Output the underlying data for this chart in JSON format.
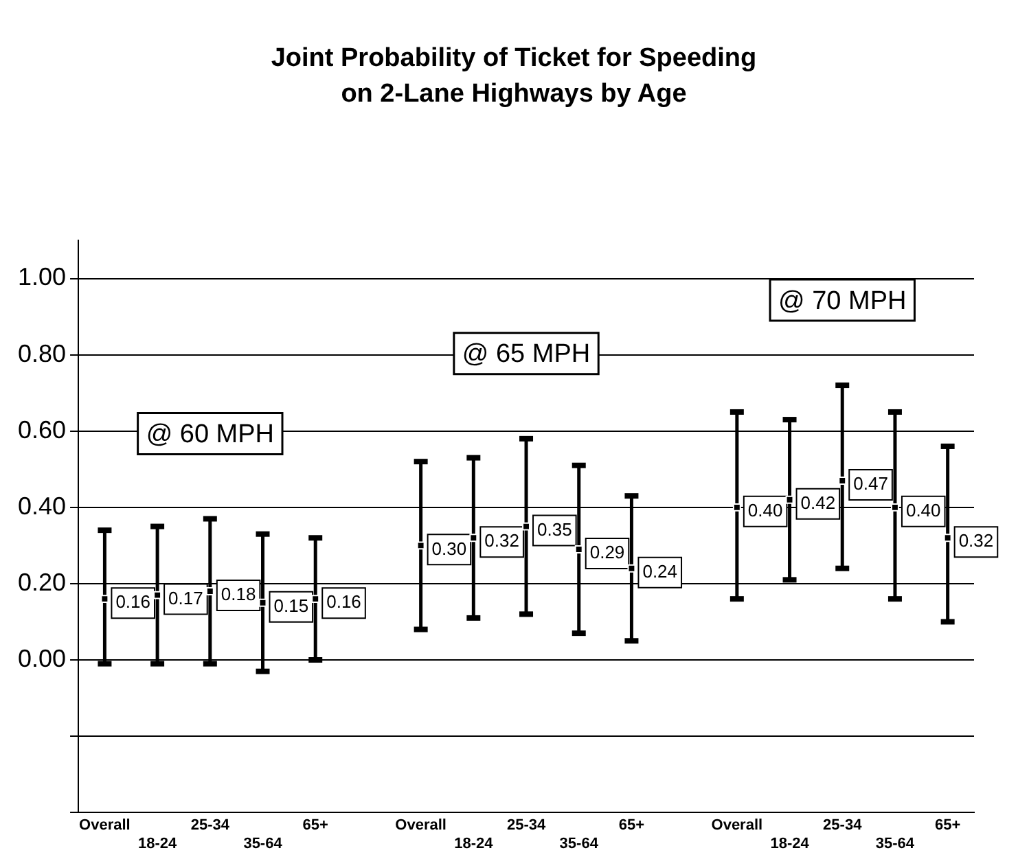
{
  "chart_data": {
    "type": "scatter",
    "title": "Joint Probability of Ticket for Speeding on 2-Lane Highways by Age",
    "categories": [
      "Overall",
      "18-24",
      "25-34",
      "35-64",
      "65+",
      null,
      "Overall",
      "18-24",
      "25-34",
      "35-64",
      "65+",
      null,
      "Overall",
      "18-24",
      "25-34",
      "35-64",
      "65+"
    ],
    "values": [
      0.16,
      0.17,
      0.18,
      0.15,
      0.16,
      null,
      0.3,
      0.32,
      0.35,
      0.29,
      0.24,
      null,
      0.4,
      0.42,
      0.47,
      0.4,
      0.32
    ],
    "errors": [
      [
        -0.01,
        0.34
      ],
      [
        -0.01,
        0.35
      ],
      [
        -0.01,
        0.37
      ],
      [
        -0.03,
        0.33
      ],
      [
        0.0,
        0.32
      ],
      null,
      [
        0.08,
        0.52
      ],
      [
        0.11,
        0.53
      ],
      [
        0.12,
        0.58
      ],
      [
        0.07,
        0.51
      ],
      [
        0.05,
        0.43
      ],
      null,
      [
        0.16,
        0.65
      ],
      [
        0.21,
        0.63
      ],
      [
        0.24,
        0.72
      ],
      [
        0.16,
        0.65
      ],
      [
        0.1,
        0.56
      ]
    ],
    "value_labels": [
      "0.16",
      "0.17",
      "0.18",
      "0.15",
      "0.16",
      null,
      "0.30",
      "0.32",
      "0.35",
      "0.29",
      "0.24",
      null,
      "0.40",
      "0.42",
      "0.47",
      "0.40",
      "0.32"
    ],
    "color": "#000000",
    "marker": "square",
    "annotations": [
      "@ 60 MPH",
      "@ 65 MPH",
      "@ 70 MPH"
    ],
    "ylim": [
      -0.4,
      1.1
    ],
    "yticks": [
      {
        "value": -0.4,
        "label": null
      },
      {
        "value": -0.2,
        "label": null
      },
      {
        "value": 0,
        "label": "0.00"
      },
      {
        "value": 0.2,
        "label": "0.20"
      },
      {
        "value": 0.4,
        "label": "0.40"
      },
      {
        "value": 0.6,
        "label": "0.60"
      },
      {
        "value": 0.8,
        "label": "0.80"
      },
      {
        "value": 1,
        "label": "1.00"
      }
    ],
    "grid": "y"
  }
}
